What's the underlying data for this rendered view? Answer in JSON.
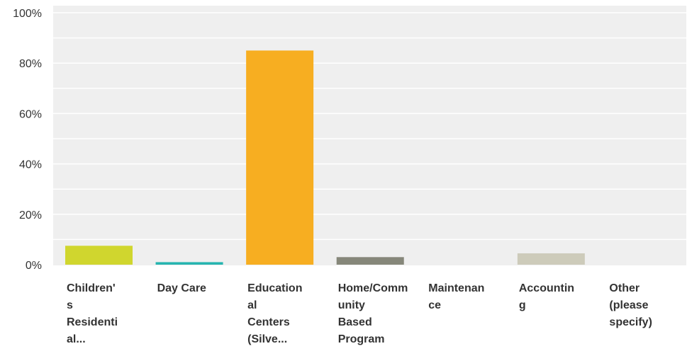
{
  "chart_data": {
    "type": "bar",
    "categories": [
      "Children's Residential...",
      "Day Care",
      "Educational Centers (Silve...",
      "Home/Community Based Program",
      "Maintenance",
      "Accounting",
      "Other (please specify)"
    ],
    "category_display": [
      "Children'\ns\nResidenti\nal...",
      "Day Care",
      "Education\nal\nCenters\n(Silve...",
      "Home/Comm\nunity\nBased\nProgram",
      "Maintenan\nce",
      "Accountin\ng",
      "Other\n(please\nspecify)"
    ],
    "values": [
      7.5,
      1,
      85,
      3,
      0,
      4.5,
      0
    ],
    "colors": [
      "#d0d62e",
      "#26b5b0",
      "#f7ae21",
      "#86877a",
      "#d0d62e",
      "#cdcbba",
      "#d0d62e"
    ],
    "yticks": [
      "0%",
      "20%",
      "40%",
      "60%",
      "80%",
      "100%"
    ],
    "ylim": [
      0,
      100
    ],
    "grid": true,
    "title": "",
    "xlabel": "",
    "ylabel": ""
  }
}
